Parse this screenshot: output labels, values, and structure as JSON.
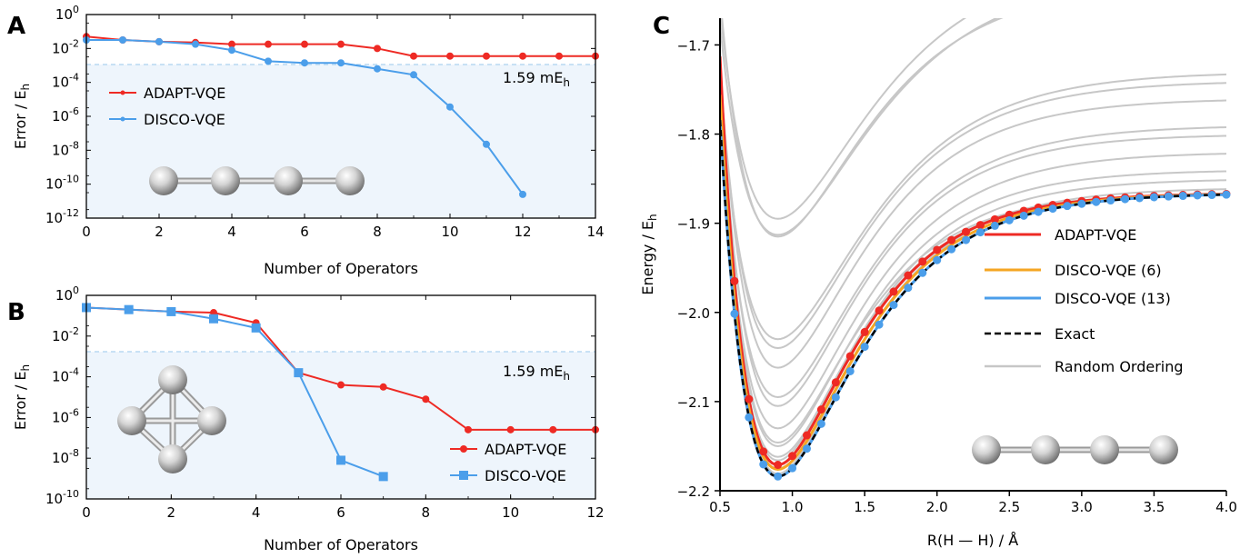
{
  "figure": {
    "panels": [
      {
        "letter": "A"
      },
      {
        "letter": "B"
      },
      {
        "letter": "C"
      }
    ]
  },
  "styles": {
    "adapt_color": "#ee2a24",
    "disco_color": "#4b9eea",
    "disco6_color": "#f5a623",
    "random_color": "#c7c7c7",
    "exact_color": "#000000",
    "threshold_color": "#b8d9f2",
    "band_color": "#eef5fc",
    "sphere_icon": "grey-sphere"
  },
  "chart_data": [
    {
      "panel": "A",
      "type": "line",
      "xlabel": "Number of Operators",
      "ylabel": "Error / E",
      "ylabel_sub": "h",
      "xlim": [
        0,
        14
      ],
      "ylim_log10": [
        -12,
        0
      ],
      "yscale": "log",
      "xticks": [
        0,
        2,
        4,
        6,
        8,
        10,
        12,
        14
      ],
      "yticks_exp": [
        0,
        -2,
        -4,
        -6,
        -8,
        -10,
        -12
      ],
      "threshold": {
        "value_log10": -2.8,
        "label": "1.59 mE",
        "label_sub": "h"
      },
      "legend": [
        {
          "name": "ADAPT-VQE",
          "marker": "circle"
        },
        {
          "name": "DISCO-VQE",
          "marker": "dot"
        }
      ],
      "molecule": "H4 linear chain",
      "series": [
        {
          "name": "ADAPT-VQE",
          "marker": "circle",
          "x": [
            0,
            1,
            2,
            3,
            4,
            5,
            6,
            7,
            8,
            9,
            10,
            11,
            12,
            13,
            14
          ],
          "log10_y": [
            -1.3,
            -1.5,
            -1.6,
            -1.65,
            -1.75,
            -1.75,
            -1.75,
            -1.75,
            -2.0,
            -2.45,
            -2.45,
            -2.45,
            -2.45,
            -2.45,
            -2.45
          ]
        },
        {
          "name": "DISCO-VQE",
          "marker": "dot",
          "x": [
            0,
            1,
            2,
            3,
            4,
            5,
            6,
            7,
            8,
            9,
            10,
            11,
            12
          ],
          "log10_y": [
            -1.5,
            -1.5,
            -1.6,
            -1.75,
            -2.1,
            -2.75,
            -2.85,
            -2.85,
            -3.2,
            -3.55,
            -5.45,
            -7.65,
            -10.6
          ]
        }
      ]
    },
    {
      "panel": "B",
      "type": "line",
      "xlabel": "Number of Operators",
      "ylabel": "Error / E",
      "ylabel_sub": "h",
      "xlim": [
        0,
        12
      ],
      "ylim_log10": [
        -10,
        0
      ],
      "yscale": "log",
      "xticks": [
        0,
        2,
        4,
        6,
        8,
        10,
        12
      ],
      "yticks_exp": [
        0,
        -2,
        -4,
        -6,
        -8,
        -10
      ],
      "threshold": {
        "value_log10": -2.8,
        "label": "1.59 mE",
        "label_sub": "h"
      },
      "legend": [
        {
          "name": "ADAPT-VQE",
          "marker": "circle"
        },
        {
          "name": "DISCO-VQE",
          "marker": "square"
        }
      ],
      "molecule": "H4 tetrahedron",
      "series": [
        {
          "name": "ADAPT-VQE",
          "marker": "circle",
          "x": [
            0,
            1,
            2,
            3,
            4,
            5,
            6,
            7,
            8,
            9,
            10,
            11,
            12
          ],
          "log10_y": [
            -0.6,
            -0.7,
            -0.8,
            -0.85,
            -1.35,
            -3.8,
            -4.4,
            -4.5,
            -5.1,
            -6.6,
            -6.6,
            -6.6,
            -6.6
          ]
        },
        {
          "name": "DISCO-VQE",
          "marker": "square",
          "x": [
            0,
            1,
            2,
            3,
            4,
            5,
            6,
            7
          ],
          "log10_y": [
            -0.6,
            -0.7,
            -0.8,
            -1.15,
            -1.6,
            -3.8,
            -8.1,
            -8.9
          ]
        }
      ]
    },
    {
      "panel": "C",
      "type": "line",
      "xlabel": "R(H — H) / Å",
      "ylabel": "Energy / E",
      "ylabel_sub": "h",
      "xlim": [
        0.5,
        4.0
      ],
      "ylim": [
        -2.2,
        -1.67
      ],
      "xticks": [
        0.5,
        1.0,
        1.5,
        2.0,
        2.5,
        3.0,
        3.5,
        4.0
      ],
      "xtick_labels": [
        "0.5",
        "1.0",
        "1.5",
        "2.0",
        "2.5",
        "3.0",
        "3.5",
        "4.0"
      ],
      "yticks": [
        -1.7,
        -1.8,
        -1.9,
        -2.0,
        -2.1,
        -2.2
      ],
      "ytick_labels": [
        "−1.7",
        "−1.8",
        "−1.9",
        "−2.0",
        "−2.1",
        "−2.2"
      ],
      "legend": [
        {
          "name": "ADAPT-VQE",
          "style": "solid"
        },
        {
          "name": "DISCO-VQE (6)",
          "style": "solid"
        },
        {
          "name": "DISCO-VQE (13)",
          "style": "solid"
        },
        {
          "name": "Exact",
          "style": "dashed"
        },
        {
          "name": "Random Ordering",
          "style": "solid"
        }
      ],
      "molecule": "H4 linear chain",
      "model": {
        "De": 0.318,
        "a": 1.88,
        "Re": 0.9,
        "E_inf": -1.866
      },
      "series": [
        {
          "name": "ADAPT-VQE",
          "De": 0.305,
          "a": 2.0,
          "Re": 0.9,
          "E_inf": -1.866,
          "marker": "circle"
        },
        {
          "name": "DISCO-VQE (6)",
          "De": 0.31,
          "a": 1.93,
          "Re": 0.9,
          "E_inf": -1.866,
          "marker": "none"
        },
        {
          "name": "DISCO-VQE (13)",
          "De": 0.318,
          "a": 1.88,
          "Re": 0.9,
          "E_inf": -1.866,
          "marker": "circle"
        },
        {
          "name": "Exact",
          "De": 0.318,
          "a": 1.88,
          "Re": 0.9,
          "E_inf": -1.866,
          "marker": "none"
        }
      ],
      "random_orderings": [
        {
          "De": 0.295,
          "a": 1.6,
          "Re": 0.9,
          "E_inf": -1.6
        },
        {
          "De": 0.293,
          "a": 1.6,
          "Re": 0.9,
          "E_inf": -1.62
        },
        {
          "De": 0.3,
          "a": 1.7,
          "Re": 0.9,
          "E_inf": -1.73
        },
        {
          "De": 0.3,
          "a": 1.75,
          "Re": 0.9,
          "E_inf": -1.74
        },
        {
          "De": 0.302,
          "a": 1.8,
          "Re": 0.9,
          "E_inf": -1.76
        },
        {
          "De": 0.305,
          "a": 1.8,
          "Re": 0.9,
          "E_inf": -1.79
        },
        {
          "De": 0.305,
          "a": 1.85,
          "Re": 0.9,
          "E_inf": -1.8
        },
        {
          "De": 0.31,
          "a": 1.85,
          "Re": 0.9,
          "E_inf": -1.82
        },
        {
          "De": 0.31,
          "a": 1.9,
          "Re": 0.9,
          "E_inf": -1.84
        },
        {
          "De": 0.312,
          "a": 1.9,
          "Re": 0.9,
          "E_inf": -1.85
        },
        {
          "De": 0.315,
          "a": 1.9,
          "Re": 0.9,
          "E_inf": -1.86
        },
        {
          "De": 0.315,
          "a": 1.95,
          "Re": 0.9,
          "E_inf": -1.866
        },
        {
          "De": 0.3,
          "a": 2.0,
          "Re": 0.9,
          "E_inf": -1.866
        },
        {
          "De": 0.28,
          "a": 2.0,
          "Re": 0.9,
          "E_inf": -1.866
        },
        {
          "De": 0.285,
          "a": 1.7,
          "Re": 0.9,
          "E_inf": -1.63
        }
      ]
    }
  ]
}
